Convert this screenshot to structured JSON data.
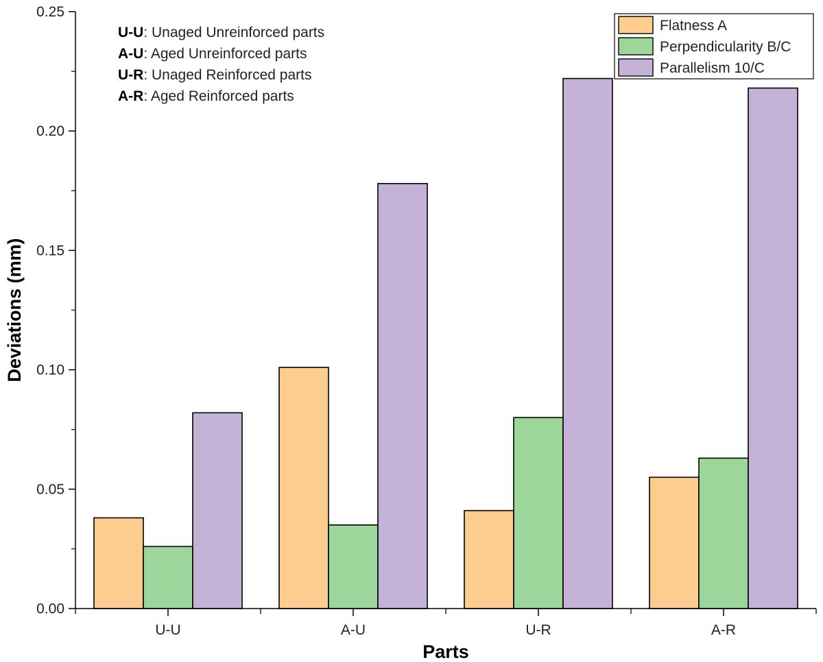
{
  "chart_data": {
    "type": "bar",
    "title": "",
    "xlabel": "Parts",
    "ylabel": "Deviations (mm)",
    "categories": [
      "U-U",
      "A-U",
      "U-R",
      "A-R"
    ],
    "ylim": [
      0,
      0.25
    ],
    "yticks": [
      "0.00",
      "0.05",
      "0.10",
      "0.15",
      "0.20",
      "0.25"
    ],
    "grid": false,
    "legend_position": "top-right",
    "series": [
      {
        "name": "Flatness A",
        "color": "#fdcd90",
        "values": [
          0.038,
          0.101,
          0.041,
          0.055
        ]
      },
      {
        "name": "Perpendicularity B/C",
        "color": "#9dd69b",
        "values": [
          0.026,
          0.035,
          0.08,
          0.063
        ]
      },
      {
        "name": "Parallelism 10/C",
        "color": "#c5b3d7",
        "values": [
          0.082,
          0.178,
          0.222,
          0.218
        ]
      }
    ],
    "annotations": [
      {
        "key": "U-U",
        "text": ": Unaged Unreinforced parts"
      },
      {
        "key": "A-U",
        "text": ": Aged Unreinforced parts"
      },
      {
        "key": "U-R",
        "text": ": Unaged Reinforced parts"
      },
      {
        "key": "A-R",
        "text": ": Aged Reinforced parts"
      }
    ]
  }
}
